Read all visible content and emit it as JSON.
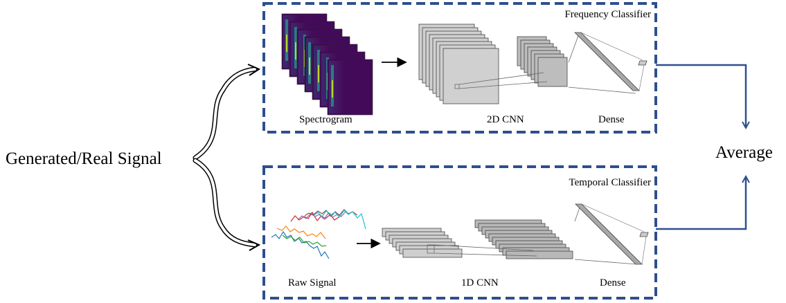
{
  "input": {
    "label": "Generated/Real Signal"
  },
  "output": {
    "label": "Average"
  },
  "frequency_classifier": {
    "title": "Frequency Classifier",
    "labels": {
      "input": "Spectrogram",
      "conv": "2D CNN",
      "dense": "Dense"
    }
  },
  "temporal_classifier": {
    "title": "Temporal Classifier",
    "labels": {
      "input": "Raw Signal",
      "conv": "1D CNN",
      "dense": "Dense"
    }
  },
  "colors": {
    "box_border": "#2d4f8e",
    "arrow": "#2d4f8e",
    "layer_fill": "#c8c8c8",
    "layer_stroke": "#444444",
    "spectrogram_bg": "#440a5a",
    "signal_lines": [
      "#1f77b4",
      "#ff7f0e",
      "#2ca02c",
      "#d62728",
      "#9467bd",
      "#8c564b",
      "#17becf"
    ]
  }
}
